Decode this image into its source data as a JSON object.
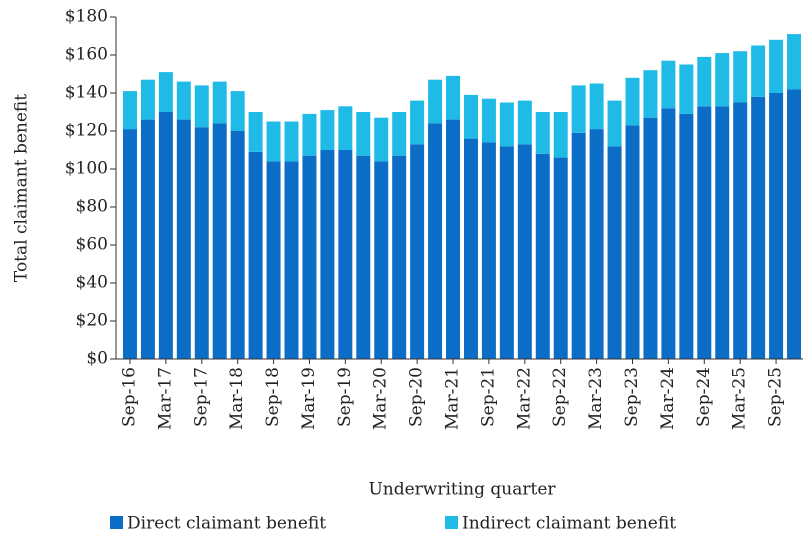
{
  "chart_data": {
    "type": "stacked_bar",
    "x_label": "Underwriting quarter",
    "y_label": "Total claimant benefit",
    "categories": [
      "Sep-16",
      null,
      "Mar-17",
      null,
      "Sep-17",
      null,
      "Mar-18",
      null,
      "Sep-18",
      null,
      "Mar-19",
      null,
      "Sep-19",
      null,
      "Mar-20",
      null,
      "Sep-20",
      null,
      "Mar-21",
      null,
      "Sep-21",
      null,
      "Mar-22",
      null,
      "Sep-22",
      null,
      "Mar-23",
      null,
      "Sep-23",
      null,
      "Mar-24",
      null,
      "Sep-24",
      null,
      "Mar-25",
      null,
      "Sep-25",
      null
    ],
    "series": [
      {
        "name": "Direct claimant benefit",
        "color": "#0b6dc6",
        "values": [
          121,
          126,
          130,
          126,
          122,
          124,
          120,
          109,
          104,
          104,
          107,
          110,
          110,
          107,
          104,
          107,
          113,
          124,
          126,
          116,
          114,
          112,
          113,
          108,
          106,
          119,
          121,
          112,
          123,
          127,
          132,
          129,
          133,
          133,
          135,
          138,
          140,
          142
        ]
      },
      {
        "name": "Indirect claimant benefit",
        "color": "#1fbbe6",
        "values": [
          20,
          21,
          21,
          20,
          22,
          22,
          21,
          21,
          21,
          21,
          22,
          21,
          23,
          23,
          23,
          23,
          23,
          23,
          23,
          23,
          23,
          23,
          23,
          22,
          24,
          25,
          24,
          24,
          25,
          25,
          25,
          26,
          26,
          28,
          27,
          27,
          28,
          29
        ]
      }
    ],
    "ylim": [
      0,
      180
    ],
    "yticks": [
      {
        "value": 0,
        "label": "$0"
      },
      {
        "value": 20,
        "label": "$20"
      },
      {
        "value": 40,
        "label": "$40"
      },
      {
        "value": 60,
        "label": "$60"
      },
      {
        "value": 80,
        "label": "$80"
      },
      {
        "value": 100,
        "label": "$100"
      },
      {
        "value": 120,
        "label": "$120"
      },
      {
        "value": 140,
        "label": "$140"
      },
      {
        "value": 160,
        "label": "$160"
      },
      {
        "value": 180,
        "label": "$180"
      }
    ],
    "legend": "bottom"
  }
}
